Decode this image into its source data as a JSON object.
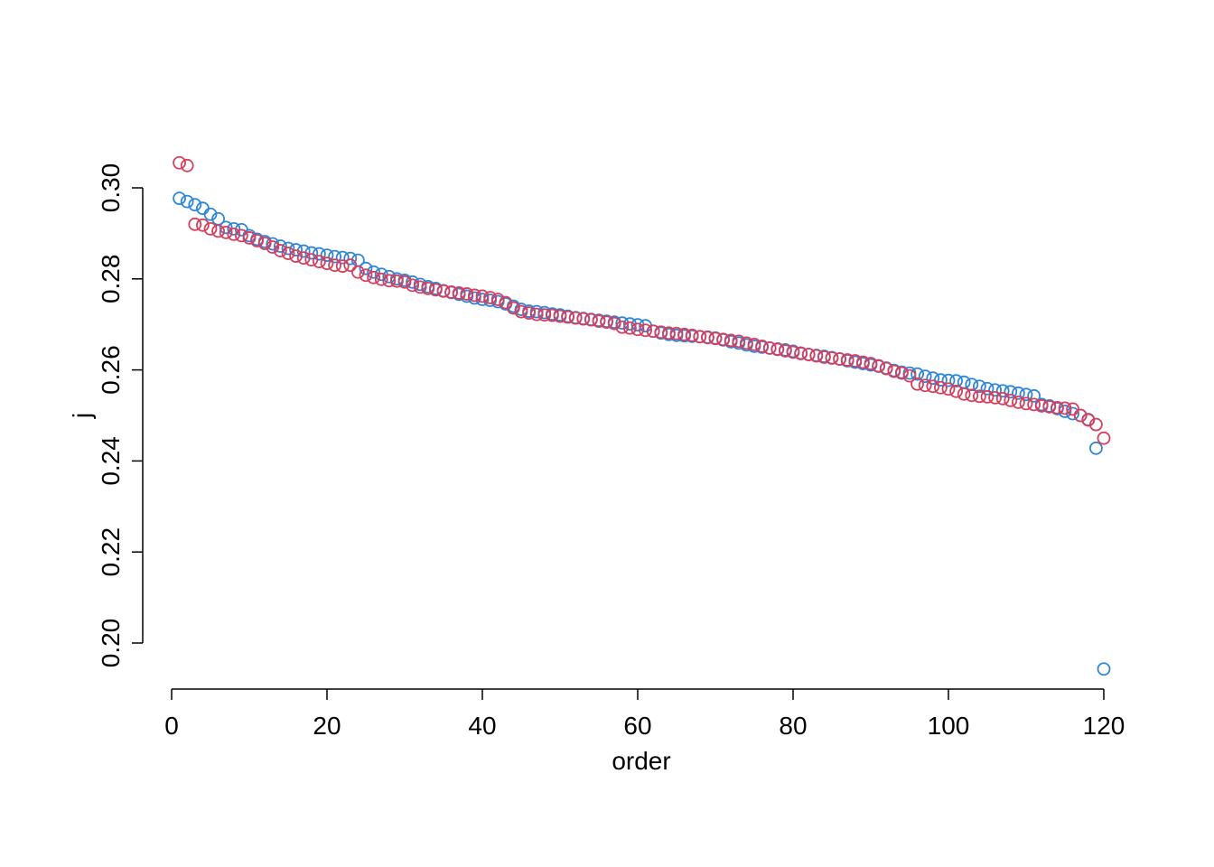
{
  "chart_data": {
    "type": "scatter",
    "xlabel": "order",
    "ylabel": "j",
    "xlim": [
      0,
      120
    ],
    "ylim": [
      0.2,
      0.3
    ],
    "x_ticks": [
      0,
      20,
      40,
      60,
      80,
      100,
      120
    ],
    "x_tick_labels": [
      "0",
      "20",
      "40",
      "60",
      "80",
      "100",
      "120"
    ],
    "y_ticks": [
      0.2,
      0.22,
      0.24,
      0.26,
      0.28,
      0.3
    ],
    "y_tick_labels": [
      "0.20",
      "0.22",
      "0.24",
      "0.26",
      "0.28",
      "0.30"
    ],
    "grid": false,
    "legend": "none",
    "colors": {
      "blue": "#2e86d8",
      "red": "#d5405e"
    },
    "series": [
      {
        "color": "#2e86d8",
        "x": [
          1,
          2,
          3,
          4,
          5,
          6,
          7,
          8,
          9,
          10,
          11,
          12,
          13,
          14,
          15,
          16,
          17,
          18,
          19,
          20,
          21,
          22,
          23,
          24,
          25,
          26,
          27,
          28,
          29,
          30,
          31,
          32,
          33,
          34,
          35,
          36,
          37,
          38,
          39,
          40,
          41,
          42,
          43,
          44,
          45,
          46,
          47,
          48,
          49,
          50,
          51,
          52,
          53,
          54,
          55,
          56,
          57,
          58,
          59,
          60,
          61,
          62,
          63,
          64,
          65,
          66,
          67,
          68,
          69,
          70,
          71,
          72,
          73,
          74,
          75,
          76,
          77,
          78,
          79,
          80,
          81,
          82,
          83,
          84,
          85,
          86,
          87,
          88,
          89,
          90,
          91,
          92,
          93,
          94,
          95,
          96,
          97,
          98,
          99,
          100,
          101,
          102,
          103,
          104,
          105,
          106,
          107,
          108,
          109,
          110,
          111,
          112,
          113,
          114,
          115,
          116,
          117,
          118,
          119,
          120
        ],
        "values": [
          0.2977,
          0.297,
          0.2963,
          0.2955,
          0.2942,
          0.2932,
          0.2913,
          0.291,
          0.2908,
          0.2895,
          0.2887,
          0.2882,
          0.2877,
          0.2872,
          0.2867,
          0.2864,
          0.2861,
          0.2857,
          0.2855,
          0.2852,
          0.2849,
          0.2847,
          0.2845,
          0.2841,
          0.2823,
          0.2815,
          0.281,
          0.2805,
          0.28,
          0.2797,
          0.2793,
          0.2788,
          0.2783,
          0.2779,
          0.2774,
          0.277,
          0.2766,
          0.2762,
          0.2758,
          0.2755,
          0.2753,
          0.275,
          0.2745,
          0.274,
          0.2733,
          0.2729,
          0.2728,
          0.2726,
          0.2723,
          0.2721,
          0.2718,
          0.2715,
          0.2713,
          0.2711,
          0.2709,
          0.2707,
          0.2705,
          0.2703,
          0.2701,
          0.2699,
          0.2697,
          0.2685,
          0.2681,
          0.2678,
          0.2676,
          0.2675,
          0.2674,
          0.2673,
          0.2672,
          0.267,
          0.2666,
          0.2662,
          0.2659,
          0.2655,
          0.2652,
          0.265,
          0.2648,
          0.2646,
          0.2644,
          0.2641,
          0.2637,
          0.2634,
          0.2632,
          0.263,
          0.2627,
          0.2624,
          0.262,
          0.2617,
          0.2614,
          0.2611,
          0.2608,
          0.2604,
          0.2599,
          0.2595,
          0.2593,
          0.2591,
          0.2586,
          0.2582,
          0.2578,
          0.2577,
          0.2576,
          0.2573,
          0.2568,
          0.2564,
          0.2559,
          0.2556,
          0.2554,
          0.2552,
          0.2549,
          0.2546,
          0.2543,
          0.2524,
          0.2521,
          0.2515,
          0.2509,
          0.2504,
          0.25,
          0.2491,
          0.2428,
          0.1943
        ]
      },
      {
        "color": "#d5405e",
        "x": [
          1,
          2,
          3,
          4,
          5,
          6,
          7,
          8,
          9,
          10,
          11,
          12,
          13,
          14,
          15,
          16,
          17,
          18,
          19,
          20,
          21,
          22,
          23,
          24,
          25,
          26,
          27,
          28,
          29,
          30,
          31,
          32,
          33,
          34,
          35,
          36,
          37,
          38,
          39,
          40,
          41,
          42,
          43,
          44,
          45,
          46,
          47,
          48,
          49,
          50,
          51,
          52,
          53,
          54,
          55,
          56,
          57,
          58,
          59,
          60,
          61,
          62,
          63,
          64,
          65,
          66,
          67,
          68,
          69,
          70,
          71,
          72,
          73,
          74,
          75,
          76,
          77,
          78,
          79,
          80,
          81,
          82,
          83,
          84,
          85,
          86,
          87,
          88,
          89,
          90,
          91,
          92,
          93,
          94,
          95,
          96,
          97,
          98,
          99,
          100,
          101,
          102,
          103,
          104,
          105,
          106,
          107,
          108,
          109,
          110,
          111,
          112,
          113,
          114,
          115,
          116,
          117,
          118,
          119,
          120
        ],
        "values": [
          0.3055,
          0.3049,
          0.292,
          0.2918,
          0.291,
          0.2905,
          0.2902,
          0.2898,
          0.2895,
          0.289,
          0.2884,
          0.2878,
          0.287,
          0.2862,
          0.2856,
          0.285,
          0.2846,
          0.2842,
          0.2838,
          0.2834,
          0.283,
          0.2828,
          0.283,
          0.2815,
          0.2808,
          0.2803,
          0.2799,
          0.2796,
          0.2795,
          0.2793,
          0.2786,
          0.2782,
          0.2779,
          0.2776,
          0.2773,
          0.2771,
          0.2769,
          0.2767,
          0.2764,
          0.2762,
          0.2759,
          0.2755,
          0.2748,
          0.2736,
          0.2728,
          0.2725,
          0.2722,
          0.2721,
          0.272,
          0.2718,
          0.2716,
          0.2714,
          0.2712,
          0.271,
          0.2707,
          0.2705,
          0.2702,
          0.2694,
          0.2692,
          0.2689,
          0.2687,
          0.2685,
          0.2683,
          0.2681,
          0.268,
          0.2678,
          0.2676,
          0.2673,
          0.2671,
          0.2669,
          0.2667,
          0.2665,
          0.2663,
          0.2659,
          0.2656,
          0.2652,
          0.2648,
          0.2645,
          0.2642,
          0.2639,
          0.2636,
          0.2634,
          0.2631,
          0.2628,
          0.2626,
          0.2624,
          0.2622,
          0.262,
          0.2617,
          0.2614,
          0.2609,
          0.2603,
          0.2597,
          0.2593,
          0.2587,
          0.2569,
          0.2566,
          0.2564,
          0.2561,
          0.2558,
          0.2553,
          0.2547,
          0.2544,
          0.2542,
          0.2541,
          0.2539,
          0.2537,
          0.2533,
          0.2529,
          0.2526,
          0.2524,
          0.2521,
          0.2519,
          0.2517,
          0.2516,
          0.2514,
          0.25,
          0.249,
          0.248,
          0.245
        ]
      }
    ]
  }
}
